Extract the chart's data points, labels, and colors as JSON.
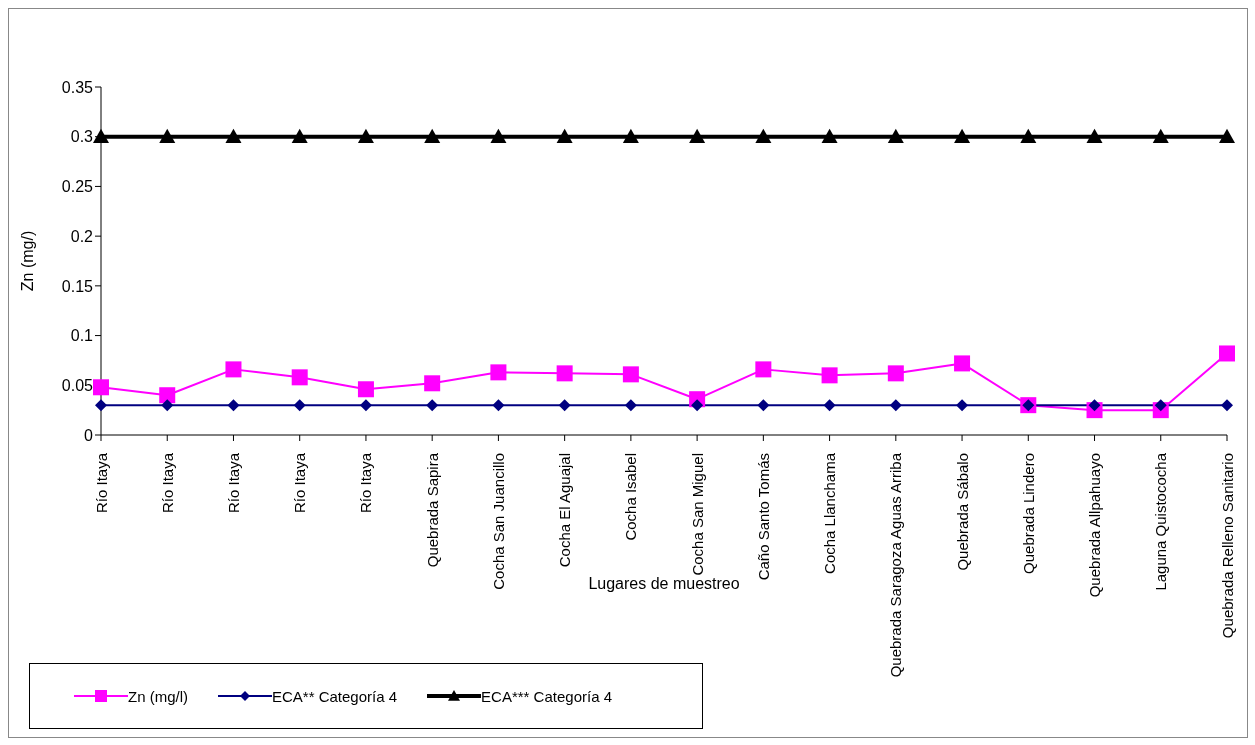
{
  "chart_data": {
    "type": "line",
    "ylabel": "Zn (mg/)",
    "xlabel": "Lugares de muestreo",
    "categories": [
      "Río Itaya",
      "Río Itaya",
      "Río Itaya",
      "Río Itaya",
      "Río Itaya",
      "Quebrada Sapira",
      "Cocha San Juancillo",
      "Cocha El Aguajal",
      "Cocha Isabel",
      "Cocha San Miguel",
      "Caño Santo Tomás",
      "Cocha Llanchama",
      "Quebrada Saragoza Aguas Arriba",
      "Quebrada Sábalo",
      "Quebrada Lindero",
      "Quebrada Allpahuayo",
      "Laguna Quistococha",
      "Quebrada Relleno Sanitario"
    ],
    "series": [
      {
        "name": "Zn (mg/l)",
        "color": "#ff00ff",
        "marker": "square",
        "values": [
          0.048,
          0.04,
          0.066,
          0.058,
          0.046,
          0.052,
          0.063,
          0.062,
          0.061,
          0.036,
          0.066,
          0.06,
          0.062,
          0.072,
          0.03,
          0.025,
          0.025,
          0.082
        ]
      },
      {
        "name": "ECA** Categoría 4",
        "color": "#000080",
        "marker": "diamond",
        "values": [
          0.03,
          0.03,
          0.03,
          0.03,
          0.03,
          0.03,
          0.03,
          0.03,
          0.03,
          0.03,
          0.03,
          0.03,
          0.03,
          0.03,
          0.03,
          0.03,
          0.03,
          0.03
        ]
      },
      {
        "name": "ECA*** Categoría 4",
        "color": "#000000",
        "marker": "triangle",
        "values": [
          0.3,
          0.3,
          0.3,
          0.3,
          0.3,
          0.3,
          0.3,
          0.3,
          0.3,
          0.3,
          0.3,
          0.3,
          0.3,
          0.3,
          0.3,
          0.3,
          0.3,
          0.3
        ]
      }
    ],
    "ylim": [
      0,
      0.35
    ],
    "yticks": [
      0,
      0.05,
      0.1,
      0.15,
      0.2,
      0.25,
      0.3,
      0.35
    ],
    "grid": false,
    "legend": "bottom left"
  }
}
